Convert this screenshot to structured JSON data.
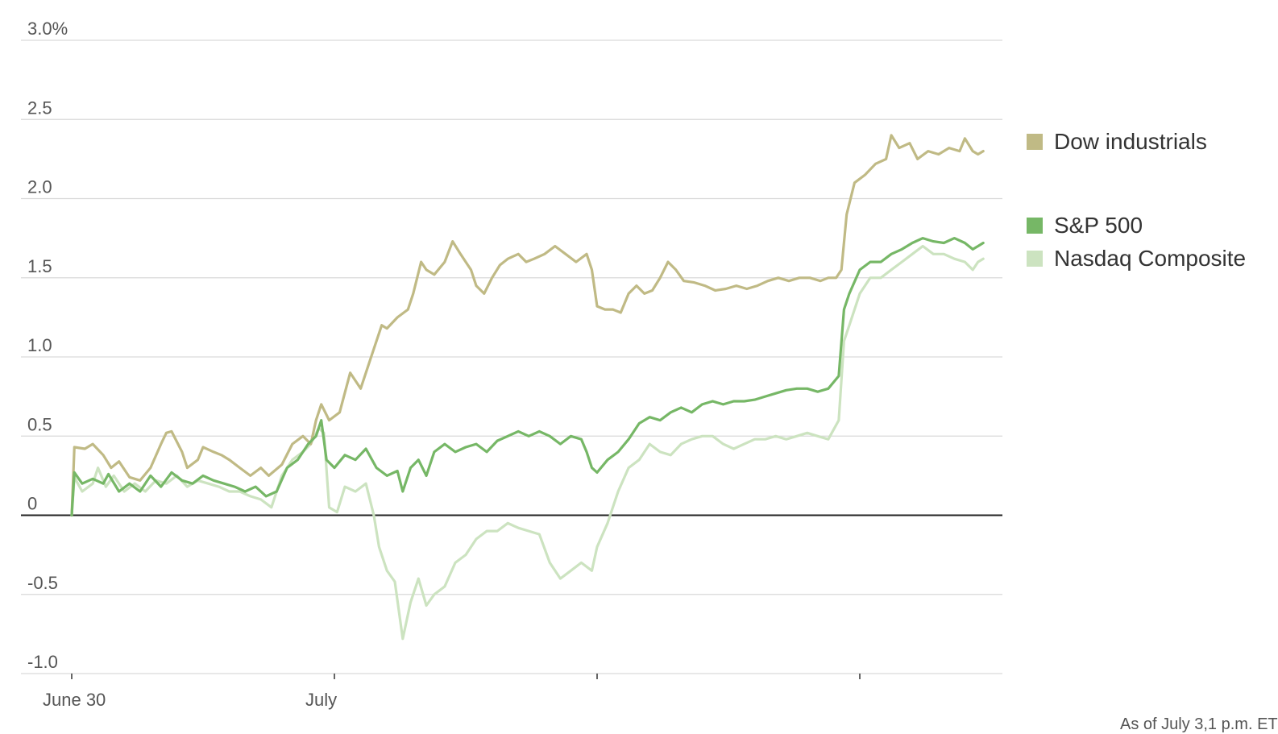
{
  "chart_data": {
    "type": "line",
    "title": "",
    "xlabel": "",
    "ylabel": "",
    "ylim": [
      -1.0,
      3.0
    ],
    "yticks": [
      {
        "value": 3.0,
        "label": "3.0%"
      },
      {
        "value": 2.5,
        "label": "2.5"
      },
      {
        "value": 2.0,
        "label": "2.0"
      },
      {
        "value": 1.5,
        "label": "1.5"
      },
      {
        "value": 1.0,
        "label": "1.0"
      },
      {
        "value": 0.5,
        "label": "0.5"
      },
      {
        "value": 0,
        "label": "0"
      },
      {
        "value": -0.5,
        "label": "-0.5"
      },
      {
        "value": -1.0,
        "label": "-1.0"
      }
    ],
    "xlim": [
      0,
      3.53
    ],
    "xticks": [
      {
        "value": 0,
        "label": "June 30"
      },
      {
        "value": 1,
        "label": "July"
      },
      {
        "value": 2,
        "label": ""
      },
      {
        "value": 3,
        "label": ""
      }
    ],
    "grid": true,
    "legend_position": "right",
    "series": [
      {
        "name": "Dow industrials",
        "color": "#c0ba85",
        "points": [
          [
            0,
            0
          ],
          [
            0.01,
            0.43
          ],
          [
            0.05,
            0.42
          ],
          [
            0.08,
            0.45
          ],
          [
            0.12,
            0.38
          ],
          [
            0.15,
            0.3
          ],
          [
            0.18,
            0.34
          ],
          [
            0.22,
            0.24
          ],
          [
            0.26,
            0.22
          ],
          [
            0.3,
            0.3
          ],
          [
            0.34,
            0.45
          ],
          [
            0.36,
            0.52
          ],
          [
            0.38,
            0.53
          ],
          [
            0.42,
            0.4
          ],
          [
            0.44,
            0.3
          ],
          [
            0.48,
            0.35
          ],
          [
            0.5,
            0.43
          ],
          [
            0.54,
            0.4
          ],
          [
            0.57,
            0.38
          ],
          [
            0.6,
            0.35
          ],
          [
            0.64,
            0.3
          ],
          [
            0.68,
            0.25
          ],
          [
            0.72,
            0.3
          ],
          [
            0.75,
            0.25
          ],
          [
            0.8,
            0.32
          ],
          [
            0.84,
            0.45
          ],
          [
            0.88,
            0.5
          ],
          [
            0.91,
            0.45
          ],
          [
            0.93,
            0.6
          ],
          [
            0.95,
            0.7
          ],
          [
            0.98,
            0.6
          ],
          [
            1.02,
            0.65
          ],
          [
            1.06,
            0.9
          ],
          [
            1.1,
            0.8
          ],
          [
            1.14,
            1.0
          ],
          [
            1.18,
            1.2
          ],
          [
            1.2,
            1.18
          ],
          [
            1.24,
            1.25
          ],
          [
            1.28,
            1.3
          ],
          [
            1.3,
            1.4
          ],
          [
            1.33,
            1.6
          ],
          [
            1.35,
            1.55
          ],
          [
            1.38,
            1.52
          ],
          [
            1.42,
            1.6
          ],
          [
            1.45,
            1.73
          ],
          [
            1.48,
            1.65
          ],
          [
            1.5,
            1.6
          ],
          [
            1.52,
            1.55
          ],
          [
            1.54,
            1.45
          ],
          [
            1.57,
            1.4
          ],
          [
            1.6,
            1.5
          ],
          [
            1.63,
            1.58
          ],
          [
            1.66,
            1.62
          ],
          [
            1.7,
            1.65
          ],
          [
            1.73,
            1.6
          ],
          [
            1.76,
            1.62
          ],
          [
            1.8,
            1.65
          ],
          [
            1.84,
            1.7
          ],
          [
            1.88,
            1.65
          ],
          [
            1.92,
            1.6
          ],
          [
            1.96,
            1.65
          ],
          [
            1.98,
            1.55
          ],
          [
            2.0,
            1.32
          ],
          [
            2.03,
            1.3
          ],
          [
            2.06,
            1.3
          ],
          [
            2.09,
            1.28
          ],
          [
            2.12,
            1.4
          ],
          [
            2.15,
            1.45
          ],
          [
            2.18,
            1.4
          ],
          [
            2.21,
            1.42
          ],
          [
            2.24,
            1.5
          ],
          [
            2.27,
            1.6
          ],
          [
            2.3,
            1.55
          ],
          [
            2.33,
            1.48
          ],
          [
            2.37,
            1.47
          ],
          [
            2.41,
            1.45
          ],
          [
            2.45,
            1.42
          ],
          [
            2.49,
            1.43
          ],
          [
            2.53,
            1.45
          ],
          [
            2.57,
            1.43
          ],
          [
            2.61,
            1.45
          ],
          [
            2.65,
            1.48
          ],
          [
            2.69,
            1.5
          ],
          [
            2.73,
            1.48
          ],
          [
            2.77,
            1.5
          ],
          [
            2.81,
            1.5
          ],
          [
            2.85,
            1.48
          ],
          [
            2.88,
            1.5
          ],
          [
            2.91,
            1.5
          ],
          [
            2.93,
            1.55
          ],
          [
            2.95,
            1.9
          ],
          [
            2.98,
            2.1
          ],
          [
            3.02,
            2.15
          ],
          [
            3.06,
            2.22
          ],
          [
            3.1,
            2.25
          ],
          [
            3.12,
            2.4
          ],
          [
            3.15,
            2.32
          ],
          [
            3.19,
            2.35
          ],
          [
            3.22,
            2.25
          ],
          [
            3.26,
            2.3
          ],
          [
            3.3,
            2.28
          ],
          [
            3.34,
            2.32
          ],
          [
            3.38,
            2.3
          ],
          [
            3.4,
            2.38
          ],
          [
            3.43,
            2.3
          ],
          [
            3.45,
            2.28
          ],
          [
            3.47,
            2.3
          ]
        ]
      },
      {
        "name": "S&P 500",
        "color": "#76b766",
        "points": [
          [
            0,
            0
          ],
          [
            0.01,
            0.27
          ],
          [
            0.04,
            0.2
          ],
          [
            0.08,
            0.23
          ],
          [
            0.12,
            0.2
          ],
          [
            0.14,
            0.26
          ],
          [
            0.18,
            0.15
          ],
          [
            0.22,
            0.2
          ],
          [
            0.26,
            0.15
          ],
          [
            0.3,
            0.25
          ],
          [
            0.34,
            0.18
          ],
          [
            0.38,
            0.27
          ],
          [
            0.42,
            0.22
          ],
          [
            0.46,
            0.2
          ],
          [
            0.5,
            0.25
          ],
          [
            0.54,
            0.22
          ],
          [
            0.58,
            0.2
          ],
          [
            0.62,
            0.18
          ],
          [
            0.66,
            0.15
          ],
          [
            0.7,
            0.18
          ],
          [
            0.74,
            0.12
          ],
          [
            0.78,
            0.15
          ],
          [
            0.82,
            0.3
          ],
          [
            0.86,
            0.35
          ],
          [
            0.9,
            0.45
          ],
          [
            0.93,
            0.5
          ],
          [
            0.95,
            0.6
          ],
          [
            0.97,
            0.35
          ],
          [
            1.0,
            0.3
          ],
          [
            1.04,
            0.38
          ],
          [
            1.08,
            0.35
          ],
          [
            1.12,
            0.42
          ],
          [
            1.16,
            0.3
          ],
          [
            1.2,
            0.25
          ],
          [
            1.24,
            0.28
          ],
          [
            1.26,
            0.15
          ],
          [
            1.29,
            0.3
          ],
          [
            1.32,
            0.35
          ],
          [
            1.35,
            0.25
          ],
          [
            1.38,
            0.4
          ],
          [
            1.42,
            0.45
          ],
          [
            1.46,
            0.4
          ],
          [
            1.5,
            0.43
          ],
          [
            1.54,
            0.45
          ],
          [
            1.58,
            0.4
          ],
          [
            1.62,
            0.47
          ],
          [
            1.66,
            0.5
          ],
          [
            1.7,
            0.53
          ],
          [
            1.74,
            0.5
          ],
          [
            1.78,
            0.53
          ],
          [
            1.82,
            0.5
          ],
          [
            1.86,
            0.45
          ],
          [
            1.9,
            0.5
          ],
          [
            1.94,
            0.48
          ],
          [
            1.96,
            0.4
          ],
          [
            1.98,
            0.3
          ],
          [
            2.0,
            0.27
          ],
          [
            2.04,
            0.35
          ],
          [
            2.08,
            0.4
          ],
          [
            2.12,
            0.48
          ],
          [
            2.16,
            0.58
          ],
          [
            2.2,
            0.62
          ],
          [
            2.24,
            0.6
          ],
          [
            2.28,
            0.65
          ],
          [
            2.32,
            0.68
          ],
          [
            2.36,
            0.65
          ],
          [
            2.4,
            0.7
          ],
          [
            2.44,
            0.72
          ],
          [
            2.48,
            0.7
          ],
          [
            2.52,
            0.72
          ],
          [
            2.56,
            0.72
          ],
          [
            2.6,
            0.73
          ],
          [
            2.64,
            0.75
          ],
          [
            2.68,
            0.77
          ],
          [
            2.72,
            0.79
          ],
          [
            2.76,
            0.8
          ],
          [
            2.8,
            0.8
          ],
          [
            2.84,
            0.78
          ],
          [
            2.88,
            0.8
          ],
          [
            2.92,
            0.88
          ],
          [
            2.94,
            1.3
          ],
          [
            2.96,
            1.4
          ],
          [
            3.0,
            1.55
          ],
          [
            3.04,
            1.6
          ],
          [
            3.08,
            1.6
          ],
          [
            3.12,
            1.65
          ],
          [
            3.16,
            1.68
          ],
          [
            3.2,
            1.72
          ],
          [
            3.24,
            1.75
          ],
          [
            3.28,
            1.73
          ],
          [
            3.32,
            1.72
          ],
          [
            3.36,
            1.75
          ],
          [
            3.4,
            1.72
          ],
          [
            3.43,
            1.68
          ],
          [
            3.45,
            1.7
          ],
          [
            3.47,
            1.72
          ]
        ]
      },
      {
        "name": "Nasdaq Composite",
        "color": "#cce3c0",
        "points": [
          [
            0,
            0
          ],
          [
            0.01,
            0.24
          ],
          [
            0.04,
            0.15
          ],
          [
            0.08,
            0.2
          ],
          [
            0.1,
            0.3
          ],
          [
            0.13,
            0.18
          ],
          [
            0.16,
            0.25
          ],
          [
            0.2,
            0.15
          ],
          [
            0.24,
            0.2
          ],
          [
            0.28,
            0.15
          ],
          [
            0.32,
            0.22
          ],
          [
            0.36,
            0.2
          ],
          [
            0.4,
            0.25
          ],
          [
            0.44,
            0.18
          ],
          [
            0.48,
            0.22
          ],
          [
            0.52,
            0.2
          ],
          [
            0.56,
            0.18
          ],
          [
            0.6,
            0.15
          ],
          [
            0.64,
            0.15
          ],
          [
            0.68,
            0.12
          ],
          [
            0.72,
            0.1
          ],
          [
            0.76,
            0.05
          ],
          [
            0.8,
            0.25
          ],
          [
            0.84,
            0.35
          ],
          [
            0.88,
            0.4
          ],
          [
            0.91,
            0.45
          ],
          [
            0.94,
            0.55
          ],
          [
            0.96,
            0.52
          ],
          [
            0.98,
            0.05
          ],
          [
            1.01,
            0.02
          ],
          [
            1.04,
            0.18
          ],
          [
            1.08,
            0.15
          ],
          [
            1.12,
            0.2
          ],
          [
            1.15,
            0.0
          ],
          [
            1.17,
            -0.2
          ],
          [
            1.2,
            -0.35
          ],
          [
            1.23,
            -0.42
          ],
          [
            1.26,
            -0.78
          ],
          [
            1.29,
            -0.55
          ],
          [
            1.32,
            -0.4
          ],
          [
            1.35,
            -0.57
          ],
          [
            1.38,
            -0.5
          ],
          [
            1.42,
            -0.45
          ],
          [
            1.46,
            -0.3
          ],
          [
            1.5,
            -0.25
          ],
          [
            1.54,
            -0.15
          ],
          [
            1.58,
            -0.1
          ],
          [
            1.62,
            -0.1
          ],
          [
            1.66,
            -0.05
          ],
          [
            1.7,
            -0.08
          ],
          [
            1.74,
            -0.1
          ],
          [
            1.78,
            -0.12
          ],
          [
            1.82,
            -0.3
          ],
          [
            1.86,
            -0.4
          ],
          [
            1.9,
            -0.35
          ],
          [
            1.94,
            -0.3
          ],
          [
            1.98,
            -0.35
          ],
          [
            2.0,
            -0.2
          ],
          [
            2.04,
            -0.05
          ],
          [
            2.08,
            0.15
          ],
          [
            2.12,
            0.3
          ],
          [
            2.16,
            0.35
          ],
          [
            2.2,
            0.45
          ],
          [
            2.24,
            0.4
          ],
          [
            2.28,
            0.38
          ],
          [
            2.32,
            0.45
          ],
          [
            2.36,
            0.48
          ],
          [
            2.4,
            0.5
          ],
          [
            2.44,
            0.5
          ],
          [
            2.48,
            0.45
          ],
          [
            2.52,
            0.42
          ],
          [
            2.56,
            0.45
          ],
          [
            2.6,
            0.48
          ],
          [
            2.64,
            0.48
          ],
          [
            2.68,
            0.5
          ],
          [
            2.72,
            0.48
          ],
          [
            2.76,
            0.5
          ],
          [
            2.8,
            0.52
          ],
          [
            2.84,
            0.5
          ],
          [
            2.88,
            0.48
          ],
          [
            2.92,
            0.6
          ],
          [
            2.94,
            1.1
          ],
          [
            2.96,
            1.2
          ],
          [
            3.0,
            1.4
          ],
          [
            3.04,
            1.5
          ],
          [
            3.08,
            1.5
          ],
          [
            3.12,
            1.55
          ],
          [
            3.16,
            1.6
          ],
          [
            3.2,
            1.65
          ],
          [
            3.24,
            1.7
          ],
          [
            3.28,
            1.65
          ],
          [
            3.32,
            1.65
          ],
          [
            3.36,
            1.62
          ],
          [
            3.4,
            1.6
          ],
          [
            3.43,
            1.55
          ],
          [
            3.45,
            1.6
          ],
          [
            3.47,
            1.62
          ]
        ]
      }
    ]
  },
  "note": "As of July 3,1 p.m. ET"
}
